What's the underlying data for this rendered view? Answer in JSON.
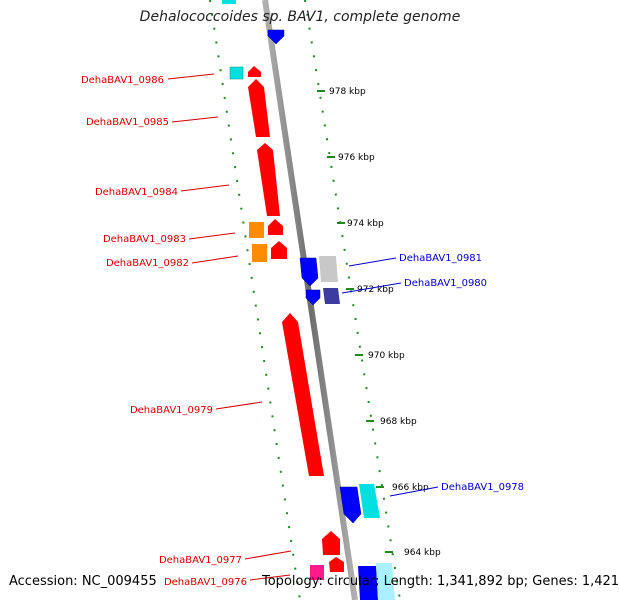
{
  "title": "Dehalococcoides sp. BAV1, complete genome",
  "footer": {
    "accession": "Accession: NC_009455",
    "topology": "Topology: circular; Length: 1,341,892 bp; Genes: 1,421"
  },
  "colors": {
    "backbone": "#8a8a8a",
    "ruler": "#1e8a1e",
    "forward_label": "#d40000",
    "reverse_label": "#0000c8",
    "forward_gene": "#ff0000",
    "reverse_gene": "#0000ff",
    "cyan_gene": "#00e0e0",
    "orange_gene": "#ff8c00",
    "gray_gene": "#c8c8c8",
    "purple_gene": "#3c3ca0"
  },
  "scale_marks": [
    "978 kbp",
    "976 kbp",
    "974 kbp",
    "972 kbp",
    "970 kbp",
    "968 kbp",
    "966 kbp",
    "964 kbp"
  ],
  "gene_labels": [
    {
      "text": "DehaBAV1_0986",
      "strand": "forward"
    },
    {
      "text": "DehaBAV1_0985",
      "strand": "forward"
    },
    {
      "text": "DehaBAV1_0984",
      "strand": "forward"
    },
    {
      "text": "DehaBAV1_0983",
      "strand": "forward"
    },
    {
      "text": "DehaBAV1_0982",
      "strand": "forward"
    },
    {
      "text": "DehaBAV1_0979",
      "strand": "forward"
    },
    {
      "text": "DehaBAV1_0977",
      "strand": "forward"
    },
    {
      "text": "DehaBAV1_0976",
      "strand": "forward"
    },
    {
      "text": "DehaBAV1_0981",
      "strand": "reverse"
    },
    {
      "text": "DehaBAV1_0980",
      "strand": "reverse"
    },
    {
      "text": "DehaBAV1_0978",
      "strand": "reverse"
    }
  ],
  "genes": [
    {
      "id": "top-blue",
      "color": "blue"
    },
    {
      "id": "top-cyan",
      "color": "cyan"
    },
    {
      "id": "cyan-small",
      "color": "cyan"
    },
    {
      "id": "red-0986",
      "color": "red"
    },
    {
      "id": "red-0985",
      "color": "red"
    },
    {
      "id": "red-0984",
      "color": "red"
    },
    {
      "id": "orange-0983",
      "color": "orange"
    },
    {
      "id": "red-0983",
      "color": "red"
    },
    {
      "id": "orange-0982",
      "color": "orange"
    },
    {
      "id": "red-0982",
      "color": "red"
    },
    {
      "id": "blue-0981",
      "color": "blue"
    },
    {
      "id": "gray-0981",
      "color": "gray"
    },
    {
      "id": "blue-0980",
      "color": "blue"
    },
    {
      "id": "purple-0980",
      "color": "purple"
    },
    {
      "id": "red-0979",
      "color": "red"
    },
    {
      "id": "blue-0978",
      "color": "blue"
    },
    {
      "id": "cyan-0978",
      "color": "cyan"
    },
    {
      "id": "red-0977",
      "color": "red"
    },
    {
      "id": "red-0977b",
      "color": "red"
    },
    {
      "id": "pink-0976",
      "color": "pink"
    },
    {
      "id": "blue-bottom",
      "color": "blue"
    },
    {
      "id": "cyan-bottom",
      "color": "cyan"
    }
  ]
}
